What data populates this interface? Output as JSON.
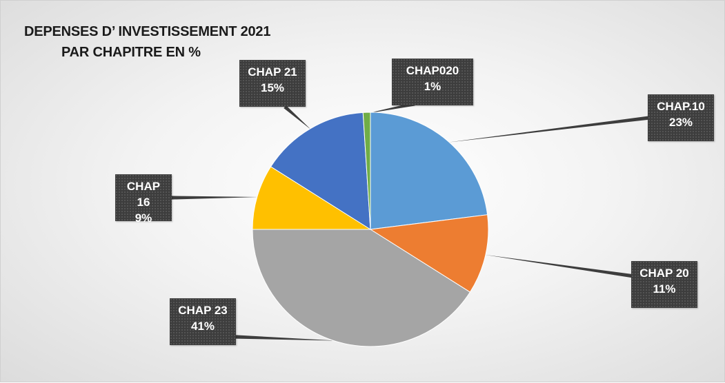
{
  "chart_data": {
    "type": "pie",
    "title_lines": [
      "DEPENSES D’ INVESTISSEMENT 2021",
      "PAR CHAPITRE EN %"
    ],
    "categories": [
      "CHAP.10",
      "CHAP 20",
      "CHAP 23",
      "CHAP 16",
      "CHAP 21",
      "CHAP020"
    ],
    "values": [
      23,
      11,
      41,
      9,
      15,
      1
    ],
    "value_labels": [
      "23%",
      "11%",
      "41%",
      "9%",
      "15%",
      "1%"
    ],
    "colors": [
      "#5b9bd5",
      "#ed7d31",
      "#a5a5a5",
      "#ffc000",
      "#4472c4",
      "#70ad47"
    ],
    "start_angle_deg": 0,
    "direction": "clockwise",
    "legend": "none",
    "data_labels": "callouts"
  }
}
